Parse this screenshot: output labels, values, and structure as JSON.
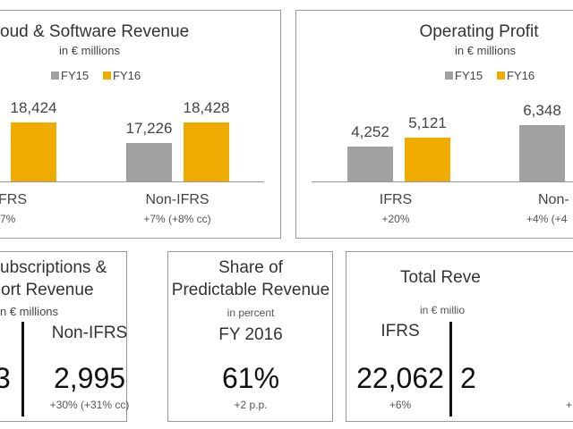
{
  "colors": {
    "fy15": "#a0a0a0",
    "fy16": "#f0ab00"
  },
  "chart_data": [
    {
      "type": "bar",
      "title": "oud & Software Revenue",
      "subtitle": "in € millions",
      "legend": [
        "FY15",
        "FY16"
      ],
      "legend_position": "top",
      "categories": [
        "FRS",
        "Non-IFRS"
      ],
      "category_changes": [
        "7%",
        "+7% (+8% cc)"
      ],
      "series": [
        {
          "name": "FY15",
          "values": [
            null,
            17226
          ],
          "labels": [
            "",
            "17,226"
          ]
        },
        {
          "name": "FY16",
          "values": [
            18424,
            18428
          ],
          "labels": [
            "18,424",
            "18,428"
          ]
        }
      ],
      "ylim": [
        15000,
        18500
      ],
      "grid": false
    },
    {
      "type": "bar",
      "title": "Operating Profit",
      "subtitle": "in € millions",
      "legend": [
        "FY15",
        "FY16"
      ],
      "legend_position": "top",
      "categories": [
        "IFRS",
        "Non-"
      ],
      "category_changes": [
        "+20%",
        "+4% (+4"
      ],
      "series": [
        {
          "name": "FY15",
          "values": [
            4252,
            6348
          ],
          "labels": [
            "4,252",
            "6,348"
          ]
        },
        {
          "name": "FY16",
          "values": [
            5121,
            null
          ],
          "labels": [
            "5,121",
            ""
          ]
        }
      ],
      "ylim": [
        860,
        6400
      ],
      "grid": false
    }
  ],
  "kpi_subscriptions": {
    "title1": "ubscriptions &",
    "title2": "ort Revenue",
    "sub": "n € millions",
    "left_value": "3",
    "right_label": "Non-IFRS",
    "right_value": "2,995",
    "right_change": "+30% (+31% cc)"
  },
  "kpi_predictable": {
    "title1": "Share of",
    "title2": "Predictable Revenue",
    "sub": "in percent",
    "period": "FY 2016",
    "value": "61%",
    "change": "+2 p.p."
  },
  "kpi_total": {
    "title": "Total Reve",
    "sub": "in € millio",
    "left_label": "IFRS",
    "left_value": "22,062",
    "left_change": "+6%",
    "right_value": "2",
    "right_change": "+"
  }
}
